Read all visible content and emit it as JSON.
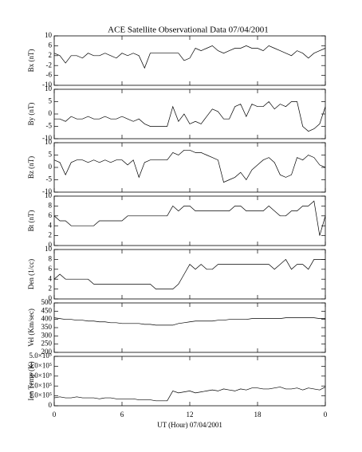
{
  "chart_data": [
    {
      "type": "line",
      "title": "ACE Satellite Observational Data  07/04/2001",
      "ylabel": "Bx (nT)",
      "color": "#000000",
      "x": [
        0,
        0.5,
        1,
        1.5,
        2,
        2.5,
        3,
        3.5,
        4,
        4.5,
        5,
        5.5,
        6,
        6.5,
        7,
        7.5,
        8,
        8.5,
        9,
        9.5,
        10,
        10.5,
        11,
        11.5,
        12,
        12.5,
        13,
        13.5,
        14,
        14.5,
        15,
        15.5,
        16,
        16.5,
        17,
        17.5,
        18,
        18.5,
        19,
        19.5,
        20,
        20.5,
        21,
        21.5,
        22,
        22.5,
        23,
        23.5,
        24
      ],
      "values": [
        3,
        2,
        -1,
        2,
        2,
        1,
        3,
        2,
        2,
        3,
        2,
        1,
        3,
        2,
        3,
        2,
        -3,
        3,
        3,
        3,
        3,
        3,
        3,
        0,
        1,
        5,
        4,
        5,
        6,
        4,
        3,
        4,
        5,
        5,
        6,
        5,
        5,
        4,
        6,
        5,
        4,
        3,
        2,
        4,
        3,
        1,
        3,
        4,
        5
      ],
      "ylim": [
        -10,
        10
      ],
      "yticks": [
        -10,
        -6,
        -2,
        2,
        6,
        10
      ]
    },
    {
      "type": "line",
      "ylabel": "By (nT)",
      "color": "#000000",
      "x": [
        0,
        0.5,
        1,
        1.5,
        2,
        2.5,
        3,
        3.5,
        4,
        4.5,
        5,
        5.5,
        6,
        6.5,
        7,
        7.5,
        8,
        8.5,
        9,
        9.5,
        10,
        10.5,
        11,
        11.5,
        12,
        12.5,
        13,
        13.5,
        14,
        14.5,
        15,
        15.5,
        16,
        16.5,
        17,
        17.5,
        18,
        18.5,
        19,
        19.5,
        20,
        20.5,
        21,
        21.5,
        22,
        22.5,
        23,
        23.5,
        24
      ],
      "values": [
        -2,
        -2,
        -3,
        -1,
        -2,
        -2,
        -1,
        -2,
        -2,
        -1,
        -2,
        -2,
        -1,
        -2,
        -3,
        -2,
        -4,
        -5,
        -5,
        -5,
        -5,
        3,
        -3,
        0,
        -4,
        -3,
        -4,
        -1,
        2,
        1,
        -2,
        -2,
        3,
        4,
        -1,
        4,
        3,
        3,
        5,
        2,
        4,
        3,
        5,
        5,
        -5,
        -7,
        -6,
        -4,
        3
      ],
      "ylim": [
        -10,
        10
      ],
      "yticks": [
        -10,
        -5,
        0,
        5,
        10
      ]
    },
    {
      "type": "line",
      "ylabel": "Bz (nT)",
      "color": "#000000",
      "x": [
        0,
        0.5,
        1,
        1.5,
        2,
        2.5,
        3,
        3.5,
        4,
        4.5,
        5,
        5.5,
        6,
        6.5,
        7,
        7.5,
        8,
        8.5,
        9,
        9.5,
        10,
        10.5,
        11,
        11.5,
        12,
        12.5,
        13,
        13.5,
        14,
        14.5,
        15,
        15.5,
        16,
        16.5,
        17,
        17.5,
        18,
        18.5,
        19,
        19.5,
        20,
        20.5,
        21,
        21.5,
        22,
        22.5,
        23,
        23.5,
        24
      ],
      "values": [
        3,
        2,
        -3,
        2,
        3,
        3,
        2,
        3,
        2,
        3,
        2,
        3,
        3,
        1,
        3,
        -4,
        2,
        3,
        3,
        3,
        3,
        6,
        5,
        7,
        7,
        6,
        6,
        5,
        4,
        3,
        -6,
        -5,
        -4,
        -2,
        -5,
        -1,
        1,
        3,
        4,
        2,
        -3,
        -4,
        -3,
        4,
        3,
        5,
        4,
        1,
        0
      ],
      "ylim": [
        -10,
        10
      ],
      "yticks": [
        -10,
        -5,
        0,
        5,
        10
      ]
    },
    {
      "type": "line",
      "ylabel": "Bt (nT)",
      "color": "#000000",
      "x": [
        0,
        0.5,
        1,
        1.5,
        2,
        2.5,
        3,
        3.5,
        4,
        4.5,
        5,
        5.5,
        6,
        6.5,
        7,
        7.5,
        8,
        8.5,
        9,
        9.5,
        10,
        10.5,
        11,
        11.5,
        12,
        12.5,
        13,
        13.5,
        14,
        14.5,
        15,
        15.5,
        16,
        16.5,
        17,
        17.5,
        18,
        18.5,
        19,
        19.5,
        20,
        20.5,
        21,
        21.5,
        22,
        22.5,
        23,
        23.5,
        24
      ],
      "values": [
        6,
        5,
        5,
        4,
        4,
        4,
        4,
        4,
        5,
        5,
        5,
        5,
        5,
        6,
        6,
        6,
        6,
        6,
        6,
        6,
        6,
        8,
        7,
        8,
        8,
        7,
        7,
        7,
        7,
        7,
        7,
        7,
        8,
        8,
        7,
        7,
        7,
        7,
        8,
        7,
        6,
        6,
        7,
        7,
        8,
        8,
        9,
        2,
        6
      ],
      "ylim": [
        0,
        10
      ],
      "yticks": [
        0,
        2,
        4,
        6,
        8,
        10
      ]
    },
    {
      "type": "line",
      "ylabel": "Den (1/cc)",
      "color": "#000000",
      "x": [
        0,
        0.5,
        1,
        1.5,
        2,
        2.5,
        3,
        3.5,
        4,
        4.5,
        5,
        5.5,
        6,
        6.5,
        7,
        7.5,
        8,
        8.5,
        9,
        9.5,
        10,
        10.5,
        11,
        11.5,
        12,
        12.5,
        13,
        13.5,
        14,
        14.5,
        15,
        15.5,
        16,
        16.5,
        17,
        17.5,
        18,
        18.5,
        19,
        19.5,
        20,
        20.5,
        21,
        21.5,
        22,
        22.5,
        23,
        23.5,
        24
      ],
      "values": [
        4,
        5,
        4,
        4,
        4,
        4,
        4,
        3,
        3,
        3,
        3,
        3,
        3,
        3,
        3,
        3,
        3,
        3,
        2,
        2,
        2,
        2,
        3,
        5,
        7,
        6,
        7,
        6,
        6,
        7,
        7,
        7,
        7,
        7,
        7,
        7,
        7,
        7,
        7,
        6,
        7,
        8,
        6,
        7,
        7,
        6,
        8,
        8,
        8
      ],
      "ylim": [
        0,
        10
      ],
      "yticks": [
        0,
        2,
        4,
        6,
        8,
        10
      ]
    },
    {
      "type": "line",
      "ylabel": "Vel (Km/sec)",
      "color": "#000000",
      "x": [
        0,
        0.5,
        1,
        1.5,
        2,
        2.5,
        3,
        3.5,
        4,
        4.5,
        5,
        5.5,
        6,
        6.5,
        7,
        7.5,
        8,
        8.5,
        9,
        9.5,
        10,
        10.5,
        11,
        11.5,
        12,
        12.5,
        13,
        13.5,
        14,
        14.5,
        15,
        15.5,
        16,
        16.5,
        17,
        17.5,
        18,
        18.5,
        19,
        19.5,
        20,
        20.5,
        21,
        21.5,
        22,
        22.5,
        23,
        23.5,
        24
      ],
      "values": [
        410,
        405,
        400,
        400,
        395,
        395,
        390,
        390,
        385,
        385,
        380,
        380,
        375,
        375,
        375,
        375,
        370,
        370,
        365,
        365,
        365,
        365,
        375,
        380,
        385,
        390,
        390,
        390,
        390,
        395,
        395,
        400,
        400,
        400,
        400,
        405,
        405,
        405,
        405,
        405,
        405,
        410,
        410,
        410,
        410,
        410,
        410,
        405,
        405
      ],
      "ylim": [
        200,
        500
      ],
      "yticks": [
        200,
        250,
        300,
        350,
        400,
        450,
        500
      ]
    },
    {
      "type": "line",
      "ylabel": "Ion Temp (K)",
      "xlabel": "UT (Hour)  07/04/2001",
      "color": "#000000",
      "x": [
        0,
        0.5,
        1,
        1.5,
        2,
        2.5,
        3,
        3.5,
        4,
        4.5,
        5,
        5.5,
        6,
        6.5,
        7,
        7.5,
        8,
        8.5,
        9,
        9.5,
        10,
        10.5,
        11,
        11.5,
        12,
        12.5,
        13,
        13.5,
        14,
        14.5,
        15,
        15.5,
        16,
        16.5,
        17,
        17.5,
        18,
        18.5,
        19,
        19.5,
        20,
        20.5,
        21,
        21.5,
        22,
        22.5,
        23,
        23.5,
        24
      ],
      "values": [
        80000,
        90000,
        80000,
        80000,
        90000,
        80000,
        80000,
        80000,
        70000,
        80000,
        80000,
        70000,
        70000,
        70000,
        70000,
        60000,
        60000,
        60000,
        50000,
        50000,
        50000,
        150000,
        130000,
        140000,
        150000,
        130000,
        140000,
        150000,
        160000,
        150000,
        170000,
        160000,
        150000,
        170000,
        160000,
        180000,
        180000,
        170000,
        170000,
        180000,
        190000,
        170000,
        170000,
        180000,
        160000,
        180000,
        170000,
        160000,
        190000
      ],
      "ylim": [
        0,
        500000
      ],
      "yticks": [
        0,
        {
          "value": 100000,
          "label": "1.0×10⁵"
        },
        {
          "value": 200000,
          "label": "2.0×10⁵"
        },
        {
          "value": 300000,
          "label": "3.0×10⁵"
        },
        {
          "value": 400000,
          "label": "4.0×10⁵"
        },
        {
          "value": 500000,
          "label": "5.0×10⁵"
        }
      ],
      "xlim": [
        0,
        24
      ],
      "xticks": [
        0,
        6,
        12,
        18,
        {
          "value": 24,
          "label": "0"
        }
      ]
    }
  ]
}
